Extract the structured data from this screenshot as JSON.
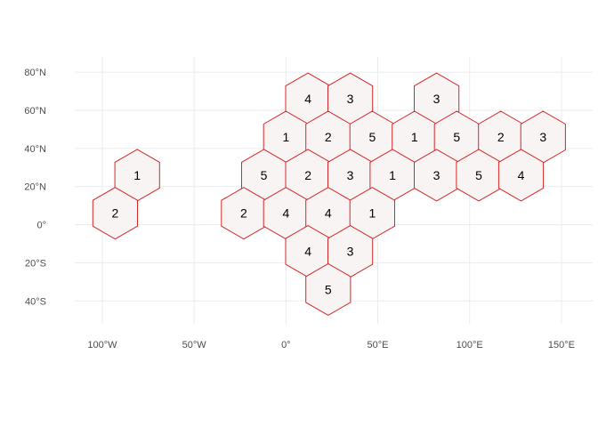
{
  "chart_data": {
    "type": "hexbin map",
    "title": "",
    "xlabel": "",
    "ylabel": "",
    "xlim": [
      -115,
      167
    ],
    "ylim": [
      -52,
      88
    ],
    "x_ticks": [
      -100,
      -50,
      0,
      50,
      100,
      150
    ],
    "x_tick_labels": [
      "100°W",
      "50°W",
      "0°",
      "50°E",
      "100°E",
      "150°E"
    ],
    "y_ticks": [
      -40,
      -20,
      0,
      20,
      40,
      60,
      80
    ],
    "y_tick_labels": [
      "40°S",
      "20°S",
      "0°",
      "20°N",
      "40°N",
      "60°N",
      "80°N"
    ],
    "grid": true,
    "hex_fill": "#f8f4f4",
    "hex_stroke": "#d62728",
    "cells": [
      {
        "x": -81,
        "y": 26,
        "value": "1"
      },
      {
        "x": -93,
        "y": 6,
        "value": "2"
      },
      {
        "x": 12,
        "y": 66,
        "value": "4"
      },
      {
        "x": 35,
        "y": 66,
        "value": "3"
      },
      {
        "x": 82,
        "y": 66,
        "value": "3"
      },
      {
        "x": 0,
        "y": 46,
        "value": "1"
      },
      {
        "x": 23,
        "y": 46,
        "value": "2"
      },
      {
        "x": 47,
        "y": 46,
        "value": "5"
      },
      {
        "x": 70,
        "y": 46,
        "value": "1"
      },
      {
        "x": 93,
        "y": 46,
        "value": "5"
      },
      {
        "x": 117,
        "y": 46,
        "value": "2"
      },
      {
        "x": 140,
        "y": 46,
        "value": "3"
      },
      {
        "x": -12,
        "y": 26,
        "value": "5"
      },
      {
        "x": 12,
        "y": 26,
        "value": "2"
      },
      {
        "x": 35,
        "y": 26,
        "value": "3"
      },
      {
        "x": 58,
        "y": 26,
        "value": "1"
      },
      {
        "x": 82,
        "y": 26,
        "value": "3"
      },
      {
        "x": 105,
        "y": 26,
        "value": "5"
      },
      {
        "x": 128,
        "y": 26,
        "value": "4"
      },
      {
        "x": -23,
        "y": 6,
        "value": "2"
      },
      {
        "x": 0,
        "y": 6,
        "value": "4"
      },
      {
        "x": 23,
        "y": 6,
        "value": "4"
      },
      {
        "x": 47,
        "y": 6,
        "value": "1"
      },
      {
        "x": 12,
        "y": -14,
        "value": "4"
      },
      {
        "x": 35,
        "y": -14,
        "value": "3"
      },
      {
        "x": 23,
        "y": -34,
        "value": "5"
      }
    ]
  }
}
